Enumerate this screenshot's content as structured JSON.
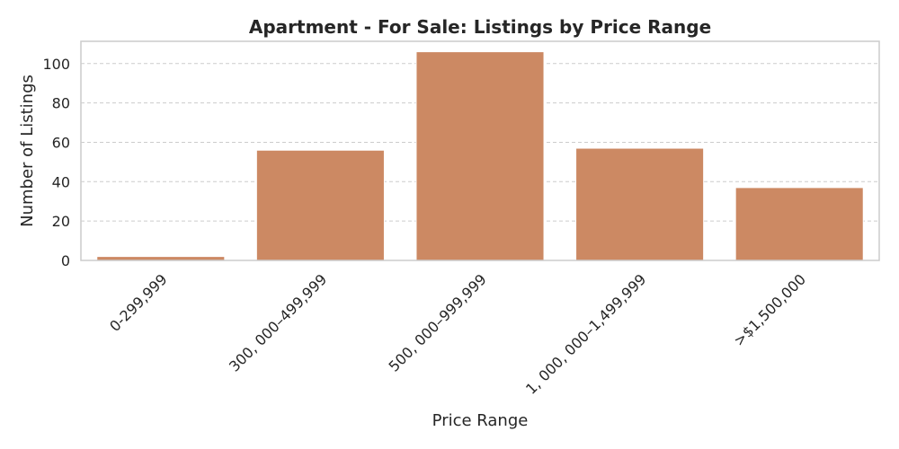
{
  "chart_data": {
    "type": "bar",
    "title": "Apartment - For Sale: Listings by Price Range",
    "xlabel": "Price Range",
    "ylabel": "Number of Listings",
    "categories": [
      "0-299,999",
      "300, 000–499,999",
      "500, 000–999,999",
      "1, 000, 000–1,499,999",
      ">$1,500,000"
    ],
    "values": [
      2,
      56,
      106,
      57,
      37
    ],
    "yticks": [
      0,
      20,
      40,
      60,
      80,
      100
    ],
    "ylim": [
      0,
      111.3
    ],
    "grid": "y-dashed",
    "bar_color": "#cc8963"
  }
}
